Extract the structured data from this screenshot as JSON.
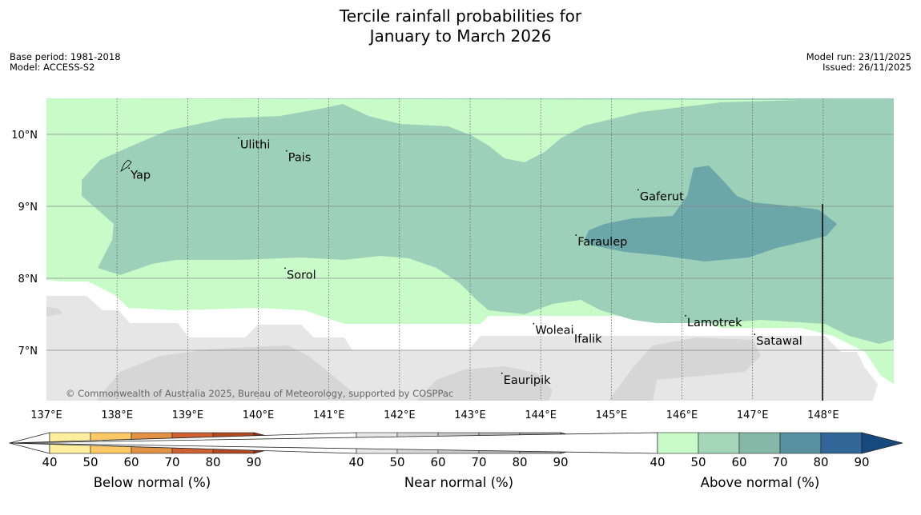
{
  "title": {
    "line1": "Tercile rainfall probabilities for",
    "line2": "January to March 2026"
  },
  "meta": {
    "base_period": "Base period: 1981-2018",
    "model": "Model: ACCESS-S2",
    "model_run": "Model run: 23/11/2025",
    "issued": "Issued: 26/11/2025"
  },
  "map": {
    "lon_range": [
      137,
      149
    ],
    "lat_range": [
      6.3,
      10.5
    ],
    "lon_ticks": [
      "137°E",
      "138°E",
      "139°E",
      "140°E",
      "141°E",
      "142°E",
      "143°E",
      "144°E",
      "145°E",
      "146°E",
      "147°E",
      "148°E"
    ],
    "lat_ticks": [
      "10°N",
      "9°N",
      "8°N",
      "7°N"
    ],
    "places": [
      {
        "name": "Yap",
        "lon": 138.17,
        "lat": 9.53
      },
      {
        "name": "Ulithi",
        "lon": 139.72,
        "lat": 9.95
      },
      {
        "name": "Pais",
        "lon": 140.4,
        "lat": 9.77
      },
      {
        "name": "Gaferut",
        "lon": 145.38,
        "lat": 9.23
      },
      {
        "name": "Faraulep",
        "lon": 144.5,
        "lat": 8.6
      },
      {
        "name": "Sorol",
        "lon": 140.38,
        "lat": 8.14
      },
      {
        "name": "Woleai",
        "lon": 143.9,
        "lat": 7.37
      },
      {
        "name": "Ifalik",
        "lon": 144.45,
        "lat": 7.25
      },
      {
        "name": "Lamotrek",
        "lon": 146.05,
        "lat": 7.48
      },
      {
        "name": "Satawal",
        "lon": 147.03,
        "lat": 7.22
      },
      {
        "name": "Eauripik",
        "lon": 143.45,
        "lat": 6.68
      }
    ],
    "copyright": "© Commonwealth of Australia 2025, Bureau of Meteorology, supported by COSPPac"
  },
  "colorbars": [
    {
      "label": "Below normal (%)",
      "ticks": [
        "40",
        "50",
        "60",
        "70",
        "80",
        "90"
      ],
      "colors": [
        "#fdeea0",
        "#fdc966",
        "#e09144",
        "#cf6232",
        "#b14a24",
        "#993020"
      ]
    },
    {
      "label": "Near normal (%)",
      "ticks": [
        "40",
        "50",
        "60",
        "70",
        "80",
        "90"
      ],
      "colors": [
        "#e6e6e6",
        "#d6d6d6",
        "#c6c6c6",
        "#b3b3b3",
        "#a0a0a0",
        "#878787"
      ]
    },
    {
      "label": "Above normal (%)",
      "ticks": [
        "40",
        "50",
        "60",
        "70",
        "80",
        "90"
      ],
      "colors": [
        "#c9fbc9",
        "#a6d6b8",
        "#86b8a8",
        "#5890a0",
        "#336699",
        "#18497e"
      ]
    }
  ]
}
